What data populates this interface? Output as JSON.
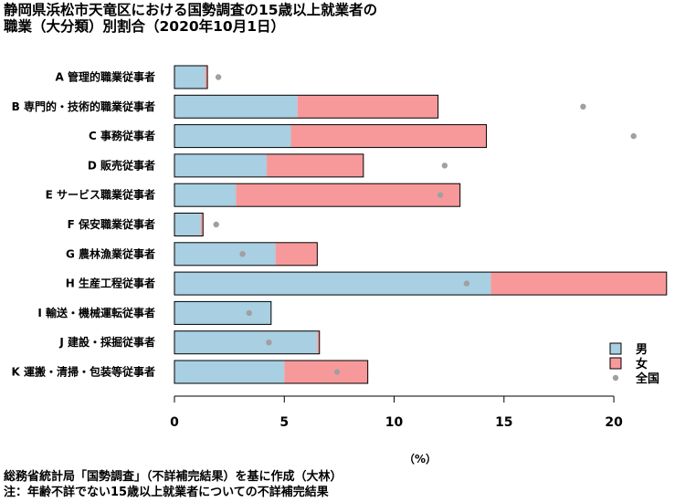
{
  "title": {
    "line1": "静岡県浜松市天竜区における国勢調査の15歳以上就業者の",
    "line2": "職業（大分類）別割合（2020年10月1日）"
  },
  "chart_data": {
    "type": "bar",
    "stacked": true,
    "orientation": "horizontal",
    "categories": [
      "A 管理的職業従事者",
      "B 専門的・技術的職業従事者",
      "C 事務従事者",
      "D 販売従事者",
      "E サービス職業従事者",
      "F 保安職業従事者",
      "G 農林漁業従事者",
      "H 生産工程従事者",
      "I 輸送・機械運転従事者",
      "J 建設・採掘従事者",
      "K 運搬・清掃・包装等従事者"
    ],
    "series": [
      {
        "name": "男",
        "color": "#a8cfe2",
        "values": [
          1.4,
          5.6,
          5.3,
          4.2,
          2.8,
          1.2,
          4.6,
          14.4,
          4.4,
          6.5,
          5.0
        ]
      },
      {
        "name": "女",
        "color": "#f7999a",
        "values": [
          0.1,
          6.4,
          8.9,
          4.4,
          10.2,
          0.1,
          1.9,
          8.0,
          0.0,
          0.1,
          3.8
        ]
      }
    ],
    "points": {
      "name": "全国",
      "color": "#a0a0a0",
      "values": [
        2.0,
        18.6,
        20.9,
        12.3,
        12.1,
        1.9,
        3.1,
        13.3,
        3.4,
        4.3,
        7.4
      ]
    },
    "xlim": [
      0,
      22.2
    ],
    "xticks": [
      0,
      5,
      10,
      15,
      20
    ],
    "xlabel": "（%）",
    "legend_position": "bottom-right"
  },
  "footer": {
    "line1": "総務省統計局「国勢調査」（不詳補完結果）を基に作成（大林）",
    "line2": "注：年齢不詳でない15歳以上就業者についての不詳補完結果"
  }
}
